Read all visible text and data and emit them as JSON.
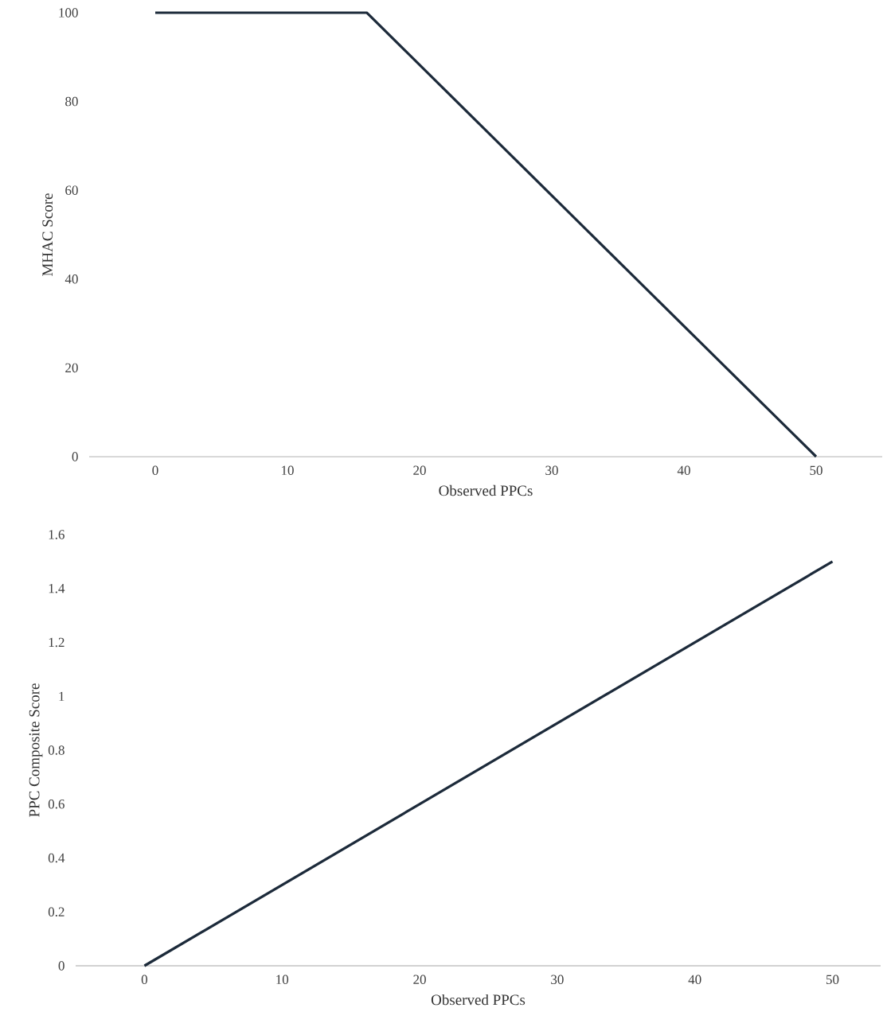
{
  "chart_data": [
    {
      "type": "line",
      "xlabel": "Observed PPCs",
      "ylabel": "MHAC Score",
      "x": [
        0,
        16,
        50
      ],
      "values": [
        100,
        100,
        0
      ],
      "color": "#1c2a3a",
      "xlim": [
        -5,
        55
      ],
      "ylim": [
        0,
        100
      ],
      "xticks": [
        0,
        10,
        20,
        30,
        40,
        50
      ],
      "yticks": [
        0,
        20,
        40,
        60,
        80,
        100
      ]
    },
    {
      "type": "line",
      "xlabel": "Observed PPCs",
      "ylabel": "PPC Composite Score",
      "x": [
        0,
        50
      ],
      "values": [
        0,
        1.5
      ],
      "color": "#1c2a3a",
      "xlim": [
        -5,
        53.5
      ],
      "ylim": [
        0,
        1.6
      ],
      "xticks": [
        0,
        10,
        20,
        30,
        40,
        50
      ],
      "yticks": [
        0,
        0.2,
        0.4,
        0.6,
        0.8,
        1,
        1.2,
        1.4,
        1.6
      ]
    }
  ]
}
